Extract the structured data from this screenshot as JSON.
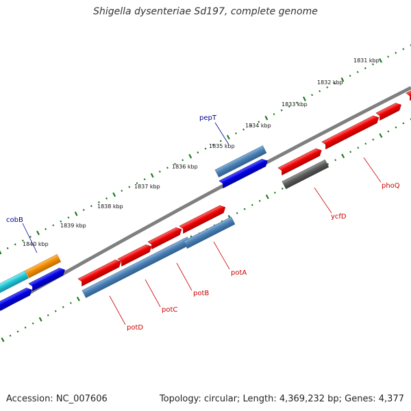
{
  "title": "Shigella dysenteriae Sd197, complete genome",
  "accession": "Accession: NC_007606",
  "summary": "Topology: circular; Length: 4,369,232 bp; Genes: 4,377",
  "colors": {
    "backbone": "#7f7f7f",
    "tick": "#1a7a1a",
    "forward_label": "#00008b",
    "reverse_label": "#cc0000",
    "gene_red": "#ee0000",
    "gene_steel": "#4a7fb5",
    "gene_blue": "#0000e0",
    "gene_orange": "#f08c00",
    "gene_cyan": "#22c4d4",
    "gene_gray": "#5a5a5a"
  },
  "ticks": [
    "1831 kbp",
    "1832 kbp",
    "1833 kbp",
    "1834 kbp",
    "1835 kbp",
    "1836 kbp",
    "1837 kbp",
    "1838 kbp",
    "1839 kbp",
    "1840 kbp"
  ],
  "gene_labels": [
    "pepT",
    "cobB",
    "phoQ",
    "ycfD",
    "potA",
    "potB",
    "potC",
    "potD"
  ]
}
